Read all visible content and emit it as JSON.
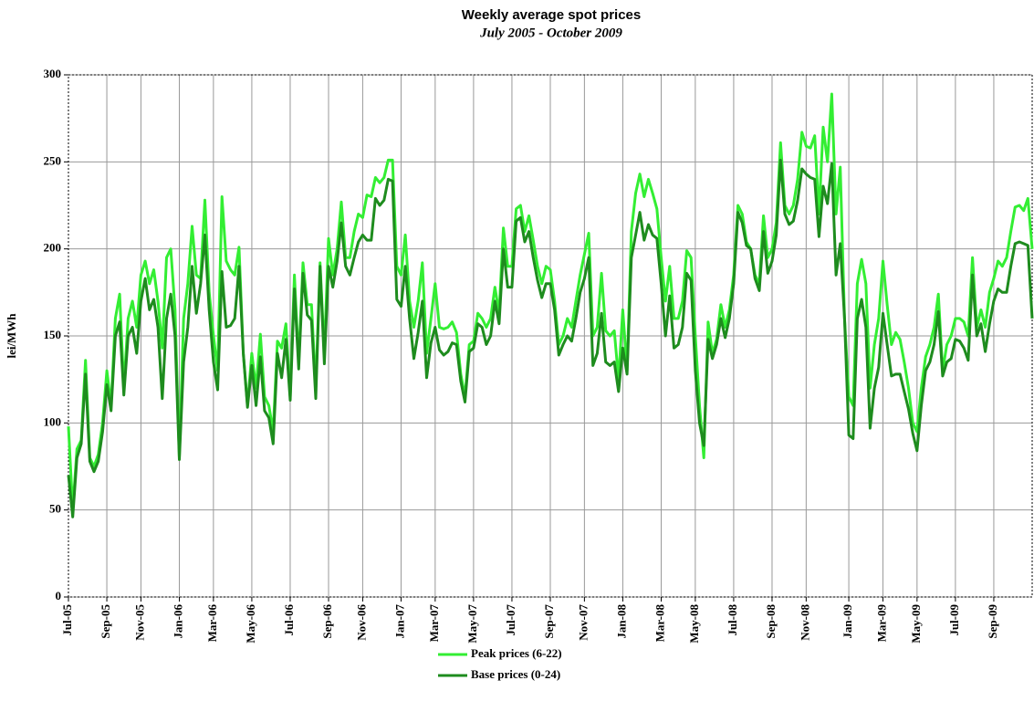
{
  "chart_data": {
    "type": "line",
    "title": "Weekly average spot prices",
    "subtitle": "July 2005 - October 2009",
    "y_label": "lei/MWh",
    "ylim": [
      0,
      300
    ],
    "yticks": [
      0,
      50,
      100,
      150,
      200,
      250,
      300
    ],
    "grid": true,
    "legend": "bottom",
    "categories": [
      "Jul-05",
      null,
      null,
      null,
      null,
      null,
      null,
      null,
      null,
      "Sep-05",
      null,
      null,
      null,
      null,
      null,
      null,
      null,
      "Nov-05",
      null,
      null,
      null,
      null,
      null,
      null,
      null,
      null,
      "Jan-06",
      null,
      null,
      null,
      null,
      null,
      null,
      null,
      "Mar-06",
      null,
      null,
      null,
      null,
      null,
      null,
      null,
      null,
      "May-06",
      null,
      null,
      null,
      null,
      null,
      null,
      null,
      null,
      "Jul-06",
      null,
      null,
      null,
      null,
      null,
      null,
      null,
      null,
      "Sep-06",
      null,
      null,
      null,
      null,
      null,
      null,
      null,
      "Nov-06",
      null,
      null,
      null,
      null,
      null,
      null,
      null,
      null,
      "Jan-07",
      null,
      null,
      null,
      null,
      null,
      null,
      null,
      "Mar-07",
      null,
      null,
      null,
      null,
      null,
      null,
      null,
      null,
      "May-07",
      null,
      null,
      null,
      null,
      null,
      null,
      null,
      null,
      "Jul-07",
      null,
      null,
      null,
      null,
      null,
      null,
      null,
      null,
      "Sep-07",
      null,
      null,
      null,
      null,
      null,
      null,
      null,
      "Nov-07",
      null,
      null,
      null,
      null,
      null,
      null,
      null,
      null,
      "Jan-08",
      null,
      null,
      null,
      null,
      null,
      null,
      null,
      null,
      "Mar-08",
      null,
      null,
      null,
      null,
      null,
      null,
      null,
      "May-08",
      null,
      null,
      null,
      null,
      null,
      null,
      null,
      null,
      "Jul-08",
      null,
      null,
      null,
      null,
      null,
      null,
      null,
      null,
      "Sep-08",
      null,
      null,
      null,
      null,
      null,
      null,
      null,
      "Nov-08",
      null,
      null,
      null,
      null,
      null,
      null,
      null,
      null,
      null,
      "Jan-09",
      null,
      null,
      null,
      null,
      null,
      null,
      null,
      "Mar-09",
      null,
      null,
      null,
      null,
      null,
      null,
      null,
      "May-09",
      null,
      null,
      null,
      null,
      null,
      null,
      null,
      null,
      "Jul-09",
      null,
      null,
      null,
      null,
      null,
      null,
      null,
      null,
      "Sep-09",
      null,
      null,
      null,
      null,
      null,
      null,
      null,
      null,
      null
    ],
    "series": [
      {
        "name": "Peak prices (6-22)",
        "color": "#33ee33",
        "values": [
          98,
          50,
          85,
          90,
          136,
          80,
          75,
          82,
          100,
          130,
          110,
          160,
          174,
          120,
          160,
          170,
          155,
          185,
          193,
          180,
          188,
          170,
          143,
          195,
          200,
          165,
          80,
          160,
          180,
          213,
          185,
          183,
          228,
          175,
          150,
          130,
          230,
          193,
          188,
          185,
          201,
          140,
          110,
          140,
          120,
          151,
          115,
          110,
          95,
          147,
          143,
          157,
          115,
          185,
          135,
          192,
          168,
          168,
          120,
          192,
          140,
          206,
          185,
          200,
          227,
          195,
          195,
          210,
          220,
          218,
          231,
          230,
          241,
          238,
          241,
          251,
          251,
          190,
          185,
          208,
          170,
          155,
          170,
          192,
          140,
          160,
          180,
          155,
          154,
          155,
          158,
          152,
          128,
          115,
          145,
          147,
          163,
          160,
          155,
          160,
          178,
          163,
          212,
          190,
          190,
          223,
          225,
          210,
          219,
          205,
          190,
          180,
          190,
          188,
          170,
          145,
          150,
          160,
          155,
          170,
          185,
          197,
          209,
          150,
          155,
          186,
          153,
          150,
          153,
          125,
          165,
          130,
          210,
          232,
          243,
          230,
          240,
          232,
          223,
          195,
          170,
          190,
          160,
          160,
          170,
          199,
          195,
          150,
          110,
          80,
          158,
          140,
          148,
          168,
          155,
          165,
          185,
          225,
          220,
          204,
          200,
          185,
          180,
          219,
          195,
          200,
          215,
          261,
          225,
          220,
          225,
          240,
          267,
          259,
          258,
          265,
          220,
          270,
          250,
          289,
          220,
          247,
          160,
          115,
          110,
          180,
          194,
          180,
          120,
          145,
          160,
          193,
          168,
          145,
          152,
          148,
          135,
          120,
          100,
          95,
          120,
          138,
          145,
          155,
          174,
          130,
          145,
          150,
          160,
          160,
          158,
          150,
          195,
          155,
          165,
          155,
          175,
          183,
          193,
          190,
          195,
          210,
          224,
          225,
          222,
          229,
          200
        ]
      },
      {
        "name": "Base prices (0-24)",
        "color": "#1e8c1e",
        "values": [
          70,
          46,
          80,
          88,
          128,
          78,
          72,
          78,
          95,
          122,
          107,
          150,
          158,
          116,
          150,
          155,
          140,
          170,
          183,
          165,
          171,
          155,
          114,
          160,
          174,
          150,
          79,
          135,
          155,
          190,
          163,
          180,
          208,
          165,
          135,
          119,
          187,
          155,
          156,
          160,
          190,
          140,
          109,
          133,
          110,
          138,
          107,
          103,
          88,
          140,
          126,
          148,
          113,
          177,
          131,
          186,
          162,
          159,
          114,
          190,
          134,
          190,
          178,
          193,
          215,
          190,
          185,
          195,
          204,
          208,
          205,
          205,
          229,
          225,
          228,
          240,
          239,
          171,
          167,
          190,
          160,
          137,
          152,
          170,
          126,
          146,
          155,
          142,
          139,
          141,
          146,
          145,
          124,
          112,
          141,
          143,
          157,
          155,
          145,
          150,
          170,
          157,
          200,
          178,
          178,
          216,
          218,
          204,
          210,
          195,
          182,
          172,
          180,
          180,
          165,
          139,
          145,
          150,
          147,
          160,
          175,
          183,
          195,
          133,
          140,
          163,
          135,
          133,
          135,
          118,
          143,
          128,
          195,
          208,
          221,
          205,
          214,
          208,
          206,
          180,
          150,
          173,
          143,
          145,
          155,
          186,
          182,
          130,
          100,
          87,
          148,
          137,
          145,
          160,
          149,
          160,
          180,
          221,
          215,
          202,
          200,
          183,
          176,
          210,
          186,
          193,
          208,
          251,
          220,
          214,
          216,
          228,
          246,
          243,
          241,
          240,
          207,
          236,
          226,
          249,
          185,
          203,
          160,
          93,
          91,
          160,
          171,
          155,
          97,
          120,
          132,
          163,
          145,
          127,
          128,
          128,
          118,
          108,
          94,
          84,
          110,
          130,
          135,
          145,
          164,
          127,
          135,
          137,
          148,
          147,
          143,
          136,
          185,
          150,
          157,
          141,
          157,
          170,
          177,
          175,
          175,
          190,
          203,
          204,
          203,
          202,
          160
        ]
      }
    ]
  }
}
